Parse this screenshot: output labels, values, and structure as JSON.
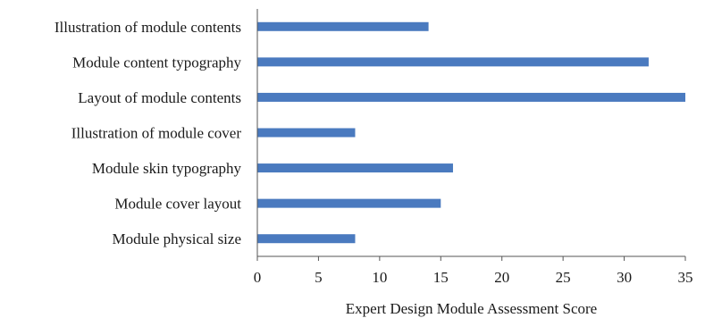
{
  "chart_data": {
    "type": "bar",
    "orientation": "horizontal",
    "title": "",
    "xlabel": "Expert Design Module Assessment Score",
    "ylabel": "",
    "categories": [
      "Illustration of module contents",
      "Module content typography",
      "Layout of module contents",
      "Illustration of module cover",
      "Module skin typography",
      "Module cover layout",
      "Module physical size"
    ],
    "values": [
      14,
      32,
      35,
      8,
      16,
      15,
      8
    ],
    "xlim": [
      0,
      35
    ],
    "xticks": [
      0,
      5,
      10,
      15,
      20,
      25,
      30,
      35
    ],
    "grid": false,
    "legend": "none",
    "bar_color": "#4a7abf"
  }
}
